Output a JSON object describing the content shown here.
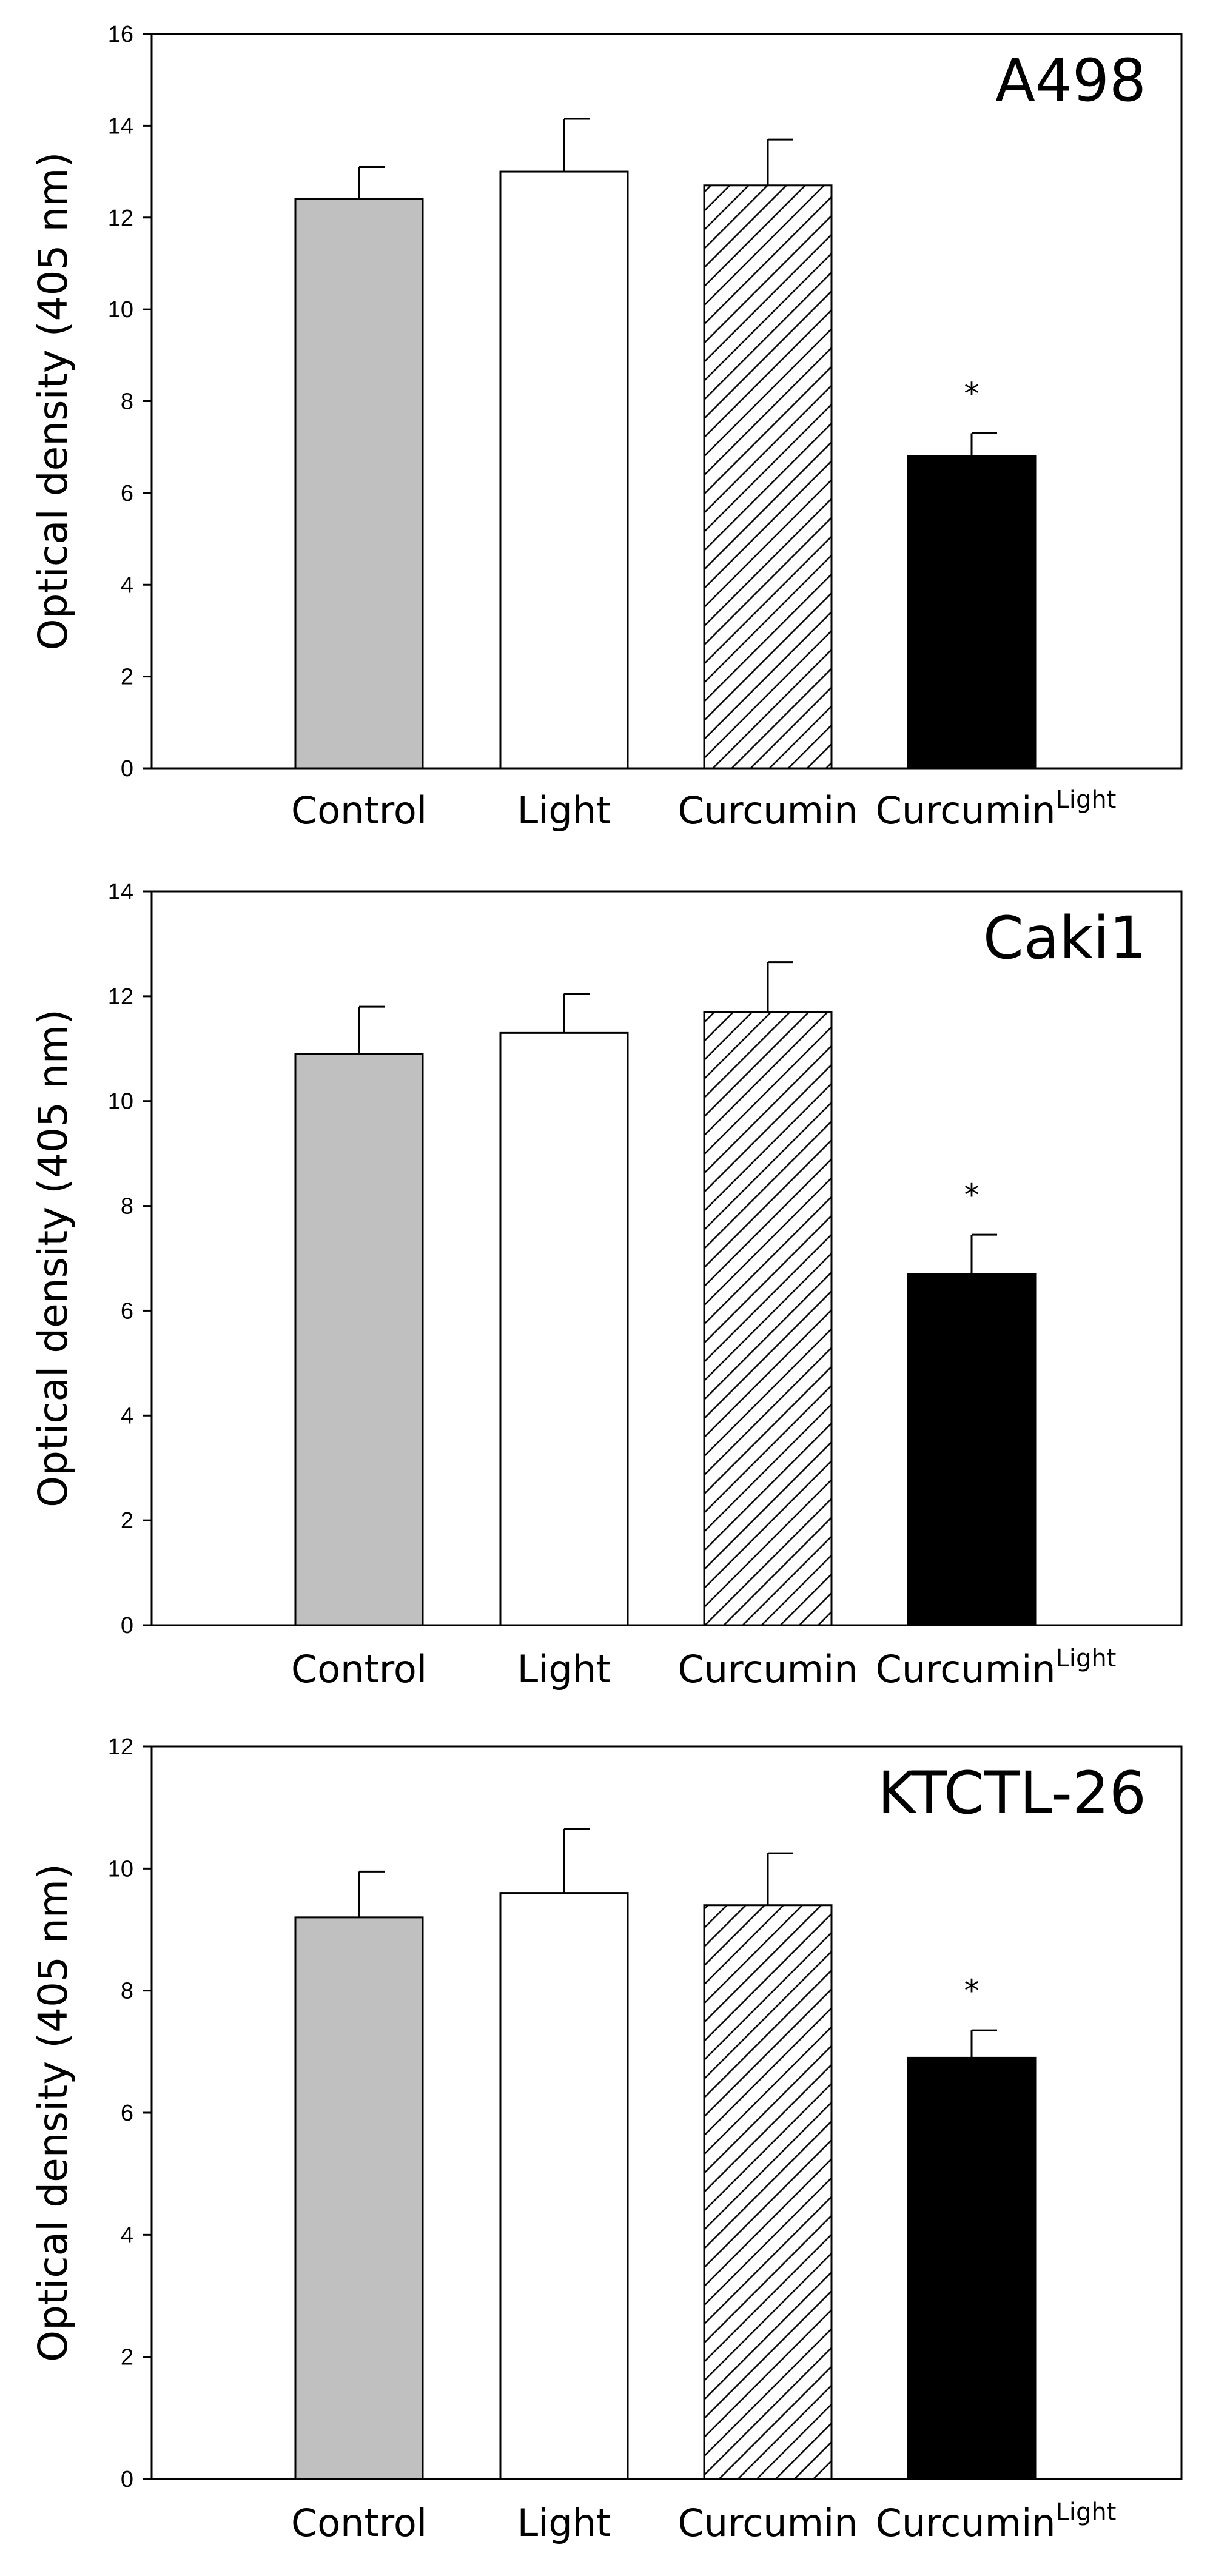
{
  "chart_data": [
    {
      "type": "bar",
      "title": "A498",
      "ylabel": "Optical density (405 nm)",
      "ylim": [
        0,
        16
      ],
      "yticks": [
        0,
        2,
        4,
        6,
        8,
        10,
        12,
        14,
        16
      ],
      "categories": [
        {
          "label": "Control",
          "sup": ""
        },
        {
          "label": "Light",
          "sup": ""
        },
        {
          "label": "Curcumin",
          "sup": ""
        },
        {
          "label": "Curcumin",
          "sup": "Light"
        }
      ],
      "values": [
        12.4,
        13.0,
        12.7,
        6.8
      ],
      "errors": [
        0.7,
        1.15,
        1.0,
        0.5
      ],
      "markers": [
        "",
        "",
        "",
        "*"
      ],
      "grid": false,
      "legend": "none"
    },
    {
      "type": "bar",
      "title": "Caki1",
      "ylabel": "Optical density (405 nm)",
      "ylim": [
        0,
        14
      ],
      "yticks": [
        0,
        2,
        4,
        6,
        8,
        10,
        12,
        14
      ],
      "categories": [
        {
          "label": "Control",
          "sup": ""
        },
        {
          "label": "Light",
          "sup": ""
        },
        {
          "label": "Curcumin",
          "sup": ""
        },
        {
          "label": "Curcumin",
          "sup": "Light"
        }
      ],
      "values": [
        10.9,
        11.3,
        11.7,
        6.7
      ],
      "errors": [
        0.9,
        0.75,
        0.95,
        0.75
      ],
      "markers": [
        "",
        "",
        "",
        "*"
      ],
      "grid": false,
      "legend": "none"
    },
    {
      "type": "bar",
      "title": "KTCTL-26",
      "ylabel": "Optical density (405 nm)",
      "ylim": [
        0,
        12
      ],
      "yticks": [
        0,
        2,
        4,
        6,
        8,
        10,
        12
      ],
      "categories": [
        {
          "label": "Control",
          "sup": ""
        },
        {
          "label": "Light",
          "sup": ""
        },
        {
          "label": "Curcumin",
          "sup": ""
        },
        {
          "label": "Curcumin",
          "sup": "Light"
        }
      ],
      "values": [
        9.2,
        9.6,
        9.4,
        6.9
      ],
      "errors": [
        0.75,
        1.05,
        0.85,
        0.45
      ],
      "markers": [
        "",
        "",
        "",
        "*"
      ],
      "grid": false,
      "legend": "none"
    }
  ],
  "colors": {
    "control": "#c0c0c0",
    "light": "#ffffff",
    "curcumin_hatch": "#ffffff",
    "curcumin_light": "#000000",
    "axis": "#000000"
  }
}
